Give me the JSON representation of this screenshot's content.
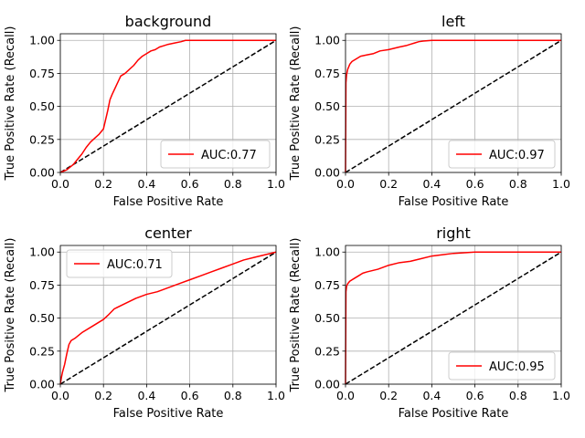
{
  "figure": {
    "x_ticks": [
      "0.0",
      "0.2",
      "0.4",
      "0.6",
      "0.8",
      "1.0"
    ],
    "y_ticks": [
      "0.00",
      "0.25",
      "0.50",
      "0.75",
      "1.00"
    ]
  },
  "colors": {
    "roc_curve": "#ff0000",
    "chance_line": "#000000",
    "grid": "#b0b0b0",
    "axes": "#000000"
  },
  "chart_data": [
    {
      "type": "line",
      "title": "background",
      "xlabel": "False Positive Rate",
      "ylabel": "True Positive Rate (Recall)",
      "xlim": [
        0,
        1
      ],
      "ylim": [
        0,
        1.05
      ],
      "grid": true,
      "legend_position": "lower right",
      "series": [
        {
          "name": "AUC:0.77",
          "x": [
            0,
            0.03,
            0.06,
            0.08,
            0.1,
            0.12,
            0.14,
            0.16,
            0.18,
            0.2,
            0.21,
            0.22,
            0.23,
            0.24,
            0.26,
            0.28,
            0.3,
            0.32,
            0.34,
            0.36,
            0.38,
            0.4,
            0.42,
            0.44,
            0.46,
            0.48,
            0.5,
            0.53,
            0.56,
            0.58,
            0.6,
            0.7,
            0.8,
            0.9,
            1.0
          ],
          "y": [
            0,
            0.02,
            0.06,
            0.1,
            0.14,
            0.19,
            0.23,
            0.26,
            0.29,
            0.33,
            0.4,
            0.47,
            0.55,
            0.59,
            0.66,
            0.73,
            0.75,
            0.78,
            0.81,
            0.85,
            0.88,
            0.9,
            0.92,
            0.93,
            0.95,
            0.96,
            0.97,
            0.98,
            0.99,
            1.0,
            1.0,
            1.0,
            1.0,
            1.0,
            1.0
          ]
        },
        {
          "x": [
            0,
            1
          ],
          "y": [
            0,
            1
          ]
        }
      ]
    },
    {
      "type": "line",
      "title": "left",
      "xlabel": "False Positive Rate",
      "ylabel": "True Positive Rate (Recall)",
      "xlim": [
        0,
        1
      ],
      "ylim": [
        0,
        1.05
      ],
      "grid": true,
      "legend_position": "lower right",
      "series": [
        {
          "name": "AUC:0.97",
          "x": [
            0,
            0.002,
            0.005,
            0.01,
            0.02,
            0.03,
            0.05,
            0.07,
            0.1,
            0.13,
            0.16,
            0.2,
            0.25,
            0.28,
            0.3,
            0.32,
            0.34,
            0.36,
            0.4,
            0.45,
            0.5,
            0.6,
            0.8,
            1.0
          ],
          "y": [
            0,
            0.68,
            0.74,
            0.78,
            0.82,
            0.84,
            0.86,
            0.88,
            0.89,
            0.9,
            0.92,
            0.93,
            0.95,
            0.96,
            0.97,
            0.98,
            0.99,
            0.995,
            1.0,
            1.0,
            1.0,
            1.0,
            1.0,
            1.0
          ]
        },
        {
          "x": [
            0,
            1
          ],
          "y": [
            0,
            1
          ]
        }
      ]
    },
    {
      "type": "line",
      "title": "center",
      "xlabel": "False Positive Rate",
      "ylabel": "True Positive Rate (Recall)",
      "xlim": [
        0,
        1
      ],
      "ylim": [
        0,
        1.05
      ],
      "grid": true,
      "legend_position": "upper left",
      "series": [
        {
          "name": "AUC:0.71",
          "x": [
            0,
            0.005,
            0.01,
            0.02,
            0.03,
            0.04,
            0.05,
            0.07,
            0.1,
            0.15,
            0.2,
            0.22,
            0.25,
            0.3,
            0.35,
            0.4,
            0.45,
            0.5,
            0.55,
            0.6,
            0.65,
            0.7,
            0.75,
            0.8,
            0.85,
            0.9,
            0.95,
            1.0
          ],
          "y": [
            0,
            0.05,
            0.09,
            0.15,
            0.23,
            0.3,
            0.33,
            0.35,
            0.39,
            0.44,
            0.49,
            0.52,
            0.57,
            0.61,
            0.65,
            0.68,
            0.7,
            0.73,
            0.76,
            0.79,
            0.82,
            0.85,
            0.88,
            0.91,
            0.94,
            0.96,
            0.98,
            1.0
          ]
        },
        {
          "x": [
            0,
            1
          ],
          "y": [
            0,
            1
          ]
        }
      ]
    },
    {
      "type": "line",
      "title": "right",
      "xlabel": "False Positive Rate",
      "ylabel": "True Positive Rate (Recall)",
      "xlim": [
        0,
        1
      ],
      "ylim": [
        0,
        1.05
      ],
      "grid": true,
      "legend_position": "lower right",
      "series": [
        {
          "name": "AUC:0.95",
          "x": [
            0,
            0.002,
            0.005,
            0.01,
            0.02,
            0.04,
            0.06,
            0.08,
            0.1,
            0.15,
            0.2,
            0.25,
            0.3,
            0.35,
            0.4,
            0.45,
            0.5,
            0.55,
            0.6,
            0.7,
            0.8,
            1.0
          ],
          "y": [
            0,
            0.7,
            0.74,
            0.76,
            0.78,
            0.8,
            0.82,
            0.84,
            0.85,
            0.87,
            0.9,
            0.92,
            0.93,
            0.95,
            0.97,
            0.98,
            0.99,
            0.995,
            1.0,
            1.0,
            1.0,
            1.0
          ]
        },
        {
          "x": [
            0,
            1
          ],
          "y": [
            0,
            1
          ]
        }
      ]
    }
  ]
}
